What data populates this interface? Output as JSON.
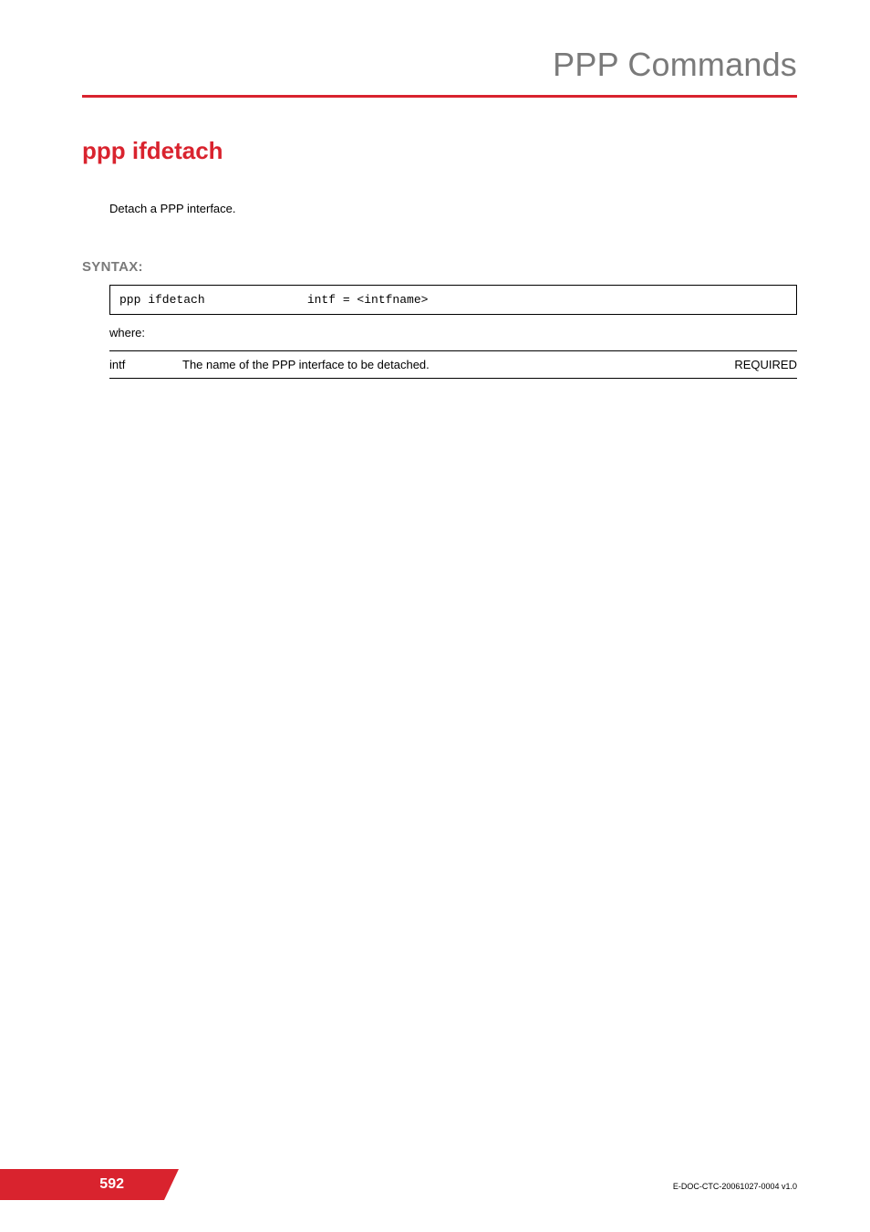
{
  "header": {
    "title": "PPP Commands"
  },
  "command": {
    "title": "ppp ifdetach",
    "description": "Detach a PPP interface."
  },
  "syntax": {
    "label": "SYNTAX:",
    "cmd": "ppp ifdetach",
    "arg": "intf = <intfname>",
    "where_label": "where:",
    "params": [
      {
        "name": "intf",
        "desc": "The name of the PPP interface to be detached.",
        "req": "REQUIRED"
      }
    ]
  },
  "footer": {
    "page": "592",
    "docid": "E-DOC-CTC-20061027-0004 v1.0"
  },
  "colors": {
    "accent": "#d9232e",
    "muted": "#7a7a7a",
    "text": "#000000",
    "bg": "#ffffff"
  }
}
